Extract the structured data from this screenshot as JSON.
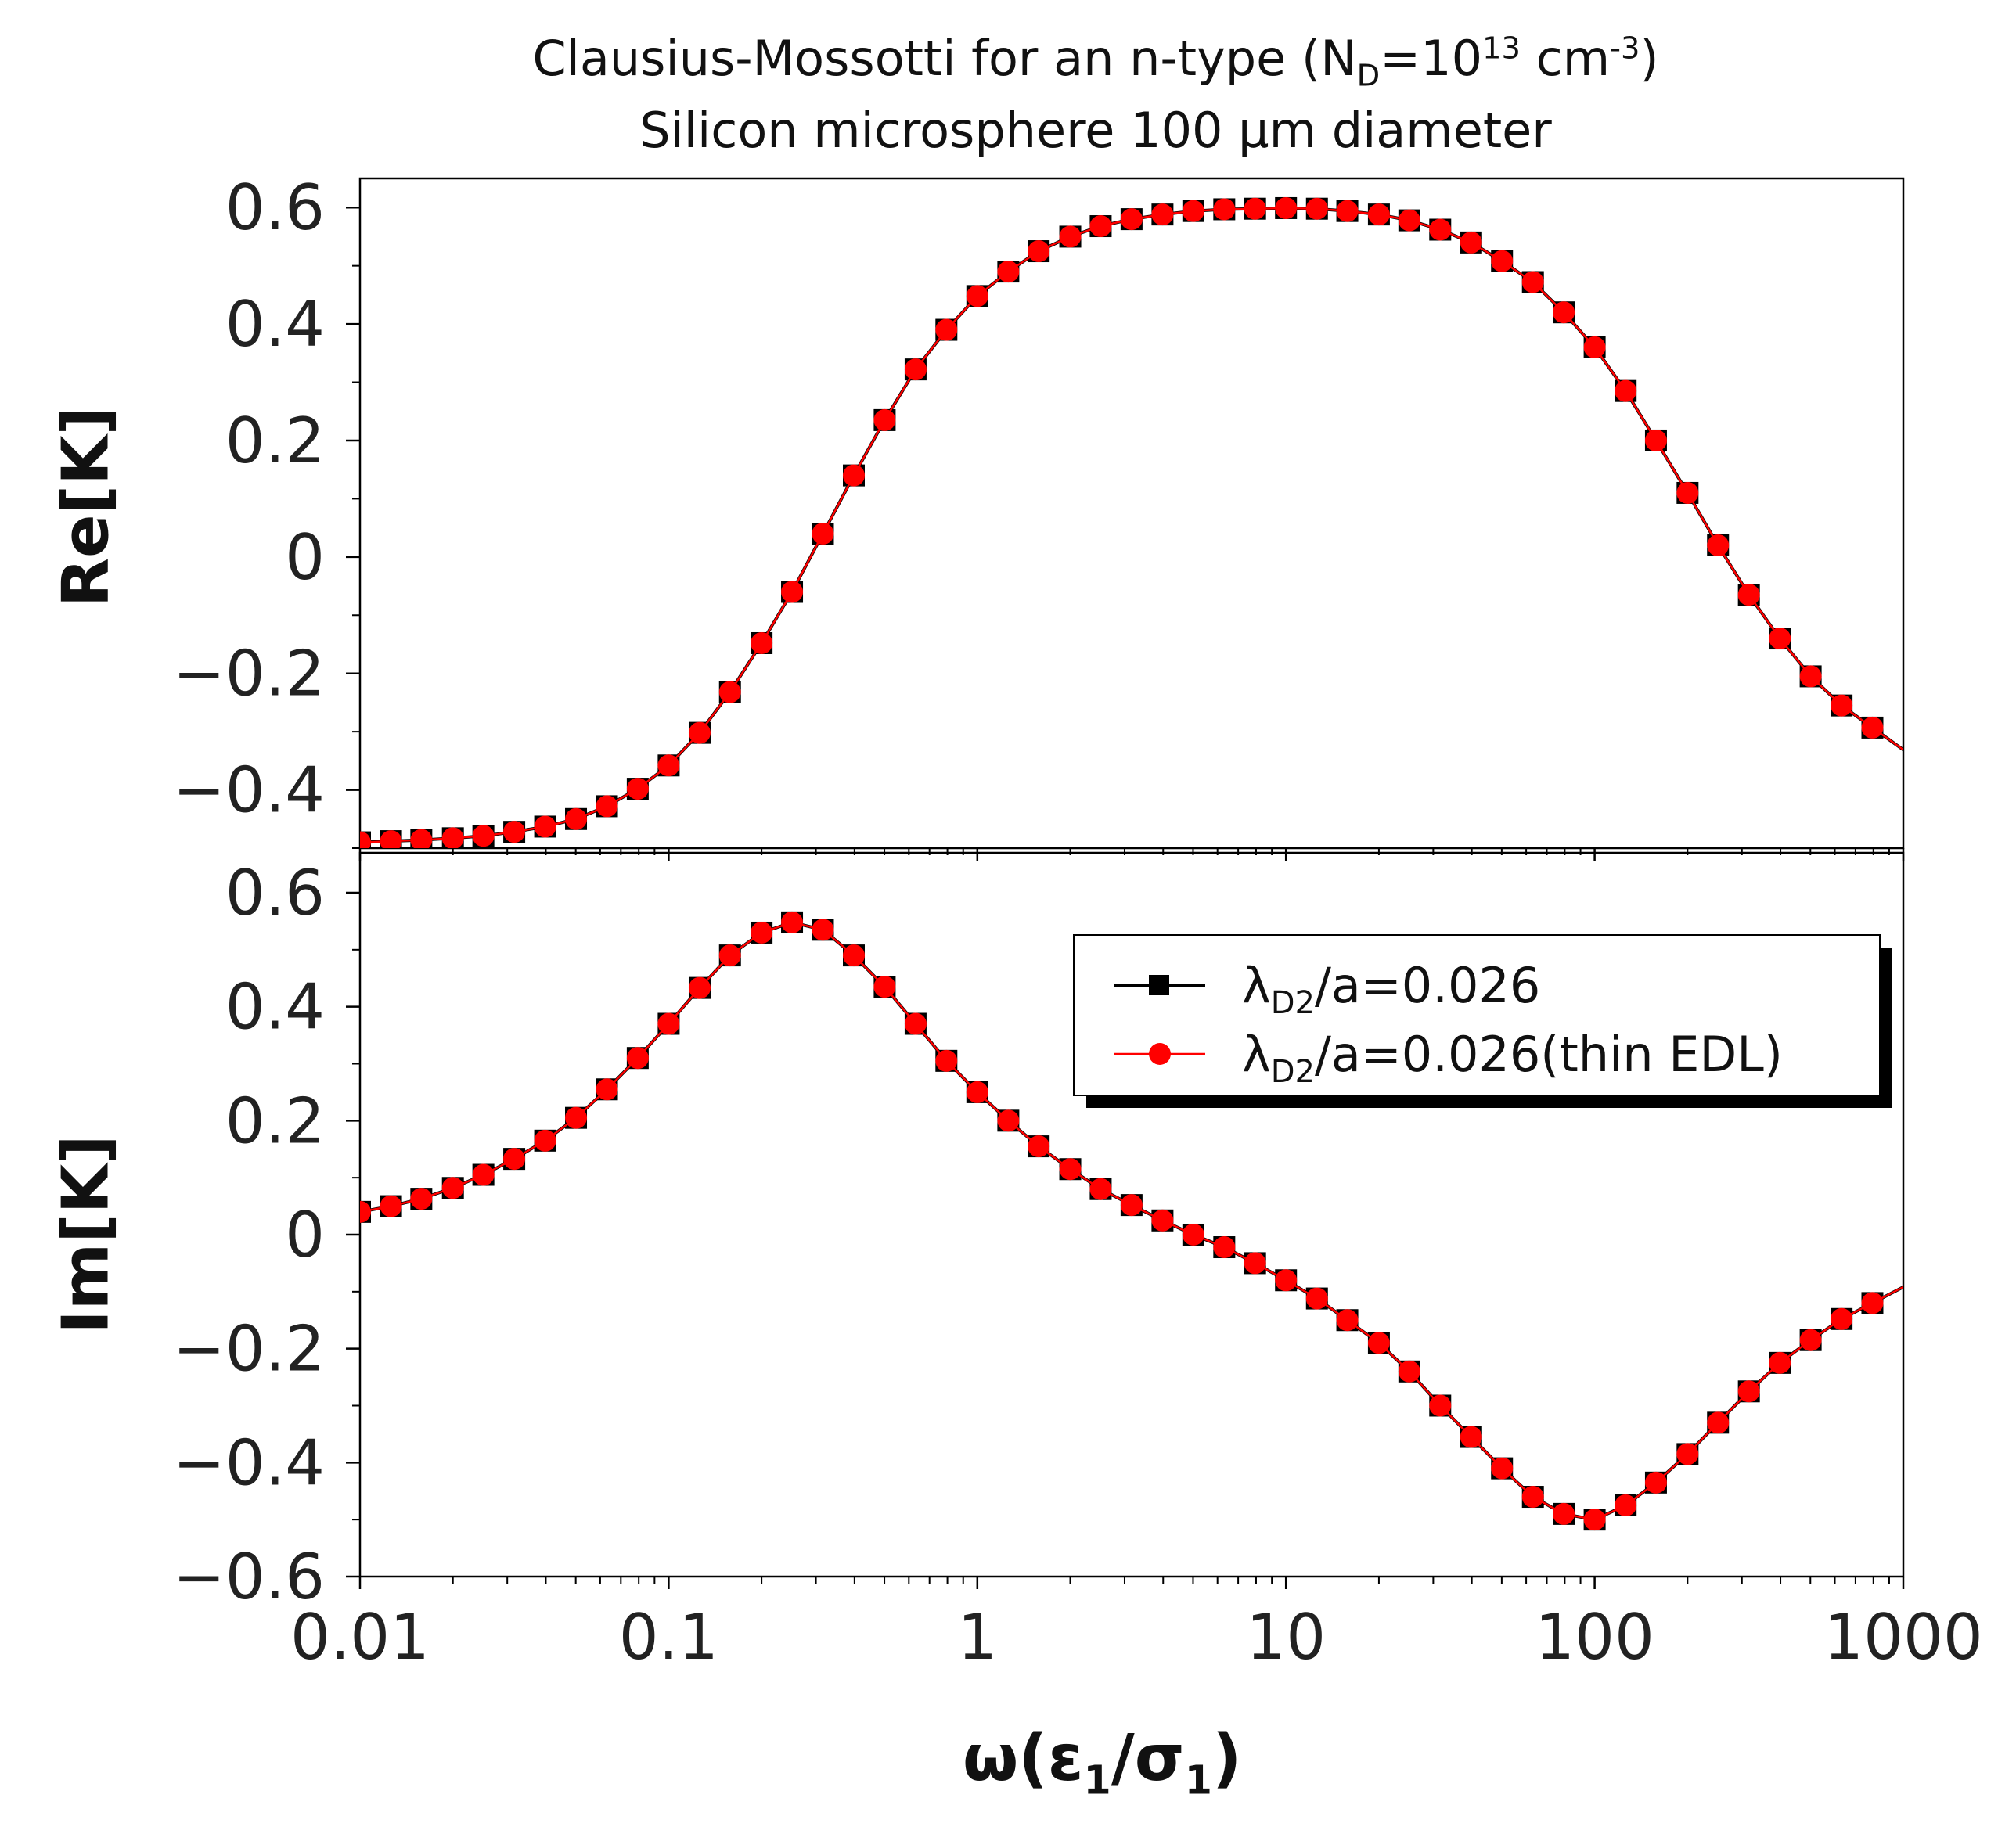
{
  "title": {
    "line1_prefix": "Clausius-Mossotti for an n-type (N",
    "line1_sub": "D",
    "line1_mid": "=10",
    "line1_sup1": "13",
    "line1_unit": " cm",
    "line1_sup2": "-3",
    "line1_suffix": ")",
    "line2": "Silicon microsphere 100 µm diameter"
  },
  "xlabel": {
    "text": "ω(ε",
    "sub1": "1",
    "mid": "/σ",
    "sub2": "1",
    "end": ")"
  },
  "colors": {
    "series1": "#000000",
    "series2": "#ff0000",
    "axis": "#000000"
  },
  "chart_data": [
    {
      "type": "line",
      "panel": "top",
      "ylabel": "Re[K]",
      "xscale": "log",
      "xlim": [
        0.01,
        1000
      ],
      "ylim": [
        -0.5,
        0.65
      ],
      "yticks": [
        -0.4,
        -0.2,
        0,
        0.2,
        0.4,
        0.6
      ],
      "ytick_labels": [
        "−0.4",
        "−0.2",
        "0",
        "0.2",
        "0.4",
        "0.6"
      ],
      "x": [
        0.01,
        0.0126,
        0.0158,
        0.02,
        0.0251,
        0.0316,
        0.0398,
        0.0501,
        0.0631,
        0.0794,
        0.1,
        0.126,
        0.158,
        0.2,
        0.251,
        0.316,
        0.398,
        0.501,
        0.631,
        0.794,
        1,
        1.26,
        1.58,
        2,
        2.51,
        3.16,
        3.98,
        5.01,
        6.31,
        7.94,
        10,
        12.6,
        15.8,
        20,
        25.1,
        31.6,
        39.8,
        50.1,
        63.1,
        79.4,
        100,
        126,
        158,
        200,
        251,
        316,
        398,
        501,
        631,
        794
      ],
      "series": [
        {
          "name": "λD2/a=0.026",
          "marker": "square",
          "values": [
            -0.49,
            -0.488,
            -0.486,
            -0.483,
            -0.479,
            -0.472,
            -0.463,
            -0.45,
            -0.428,
            -0.398,
            -0.358,
            -0.302,
            -0.232,
            -0.148,
            -0.06,
            0.04,
            0.14,
            0.235,
            0.322,
            0.39,
            0.448,
            0.49,
            0.525,
            0.55,
            0.568,
            0.58,
            0.588,
            0.594,
            0.597,
            0.598,
            0.599,
            0.598,
            0.594,
            0.588,
            0.578,
            0.562,
            0.54,
            0.508,
            0.472,
            0.42,
            0.36,
            0.285,
            0.2,
            0.11,
            0.02,
            -0.065,
            -0.14,
            -0.205,
            -0.255,
            -0.293
          ]
        },
        {
          "name": "λD2/a=0.026(thin EDL)",
          "marker": "circle",
          "values": [
            -0.49,
            -0.488,
            -0.486,
            -0.483,
            -0.479,
            -0.472,
            -0.463,
            -0.45,
            -0.428,
            -0.398,
            -0.358,
            -0.302,
            -0.232,
            -0.148,
            -0.06,
            0.04,
            0.14,
            0.235,
            0.322,
            0.39,
            0.448,
            0.49,
            0.525,
            0.55,
            0.568,
            0.58,
            0.588,
            0.594,
            0.597,
            0.598,
            0.599,
            0.598,
            0.594,
            0.588,
            0.578,
            0.562,
            0.54,
            0.508,
            0.472,
            0.42,
            0.36,
            0.285,
            0.2,
            0.11,
            0.02,
            -0.065,
            -0.14,
            -0.205,
            -0.255,
            -0.293
          ]
        }
      ]
    },
    {
      "type": "line",
      "panel": "bottom",
      "ylabel": "Im[K]",
      "xscale": "log",
      "xlim": [
        0.01,
        1000
      ],
      "ylim": [
        -0.6,
        0.67
      ],
      "yticks": [
        -0.6,
        -0.4,
        -0.2,
        0,
        0.2,
        0.4,
        0.6
      ],
      "ytick_labels": [
        "−0.6",
        "−0.4",
        "−0.2",
        "0",
        "0.2",
        "0.4",
        "0.6"
      ],
      "xticks": [
        0.01,
        0.1,
        1,
        10,
        100,
        1000
      ],
      "xtick_labels": [
        "0.01",
        "0.1",
        "1",
        "10",
        "100",
        "1000"
      ],
      "x": [
        0.01,
        0.0126,
        0.0158,
        0.02,
        0.0251,
        0.0316,
        0.0398,
        0.0501,
        0.0631,
        0.0794,
        0.1,
        0.126,
        0.158,
        0.2,
        0.251,
        0.316,
        0.398,
        0.501,
        0.631,
        0.794,
        1,
        1.26,
        1.58,
        2,
        2.51,
        3.16,
        3.98,
        5.01,
        6.31,
        7.94,
        10,
        12.6,
        15.8,
        20,
        25.1,
        31.6,
        39.8,
        50.1,
        63.1,
        79.4,
        100,
        126,
        158,
        200,
        251,
        316,
        398,
        501,
        631,
        794
      ],
      "series": [
        {
          "name": "λD2/a=0.026",
          "marker": "square",
          "values": [
            0.04,
            0.05,
            0.063,
            0.082,
            0.105,
            0.133,
            0.165,
            0.205,
            0.255,
            0.31,
            0.37,
            0.433,
            0.49,
            0.53,
            0.548,
            0.535,
            0.49,
            0.435,
            0.37,
            0.305,
            0.25,
            0.2,
            0.155,
            0.115,
            0.08,
            0.052,
            0.025,
            0.0,
            -0.022,
            -0.05,
            -0.08,
            -0.112,
            -0.15,
            -0.19,
            -0.24,
            -0.3,
            -0.355,
            -0.41,
            -0.46,
            -0.49,
            -0.5,
            -0.475,
            -0.435,
            -0.385,
            -0.33,
            -0.275,
            -0.225,
            -0.185,
            -0.148,
            -0.12
          ]
        },
        {
          "name": "λD2/a=0.026(thin EDL)",
          "marker": "circle",
          "values": [
            0.04,
            0.05,
            0.063,
            0.082,
            0.105,
            0.133,
            0.165,
            0.205,
            0.255,
            0.31,
            0.37,
            0.433,
            0.49,
            0.53,
            0.548,
            0.535,
            0.49,
            0.435,
            0.37,
            0.305,
            0.25,
            0.2,
            0.155,
            0.115,
            0.08,
            0.052,
            0.025,
            0.0,
            -0.022,
            -0.05,
            -0.08,
            -0.112,
            -0.15,
            -0.19,
            -0.24,
            -0.3,
            -0.355,
            -0.41,
            -0.46,
            -0.49,
            -0.5,
            -0.475,
            -0.435,
            -0.385,
            -0.33,
            -0.275,
            -0.225,
            -0.185,
            -0.148,
            -0.12
          ]
        }
      ]
    }
  ],
  "legend": {
    "placement": "top-right",
    "entries": [
      {
        "prefix": "λ",
        "sub": "D2",
        "suffix": "/a=0.026"
      },
      {
        "prefix": "λ",
        "sub": "D2",
        "suffix": "/a=0.026(thin EDL)"
      }
    ]
  }
}
